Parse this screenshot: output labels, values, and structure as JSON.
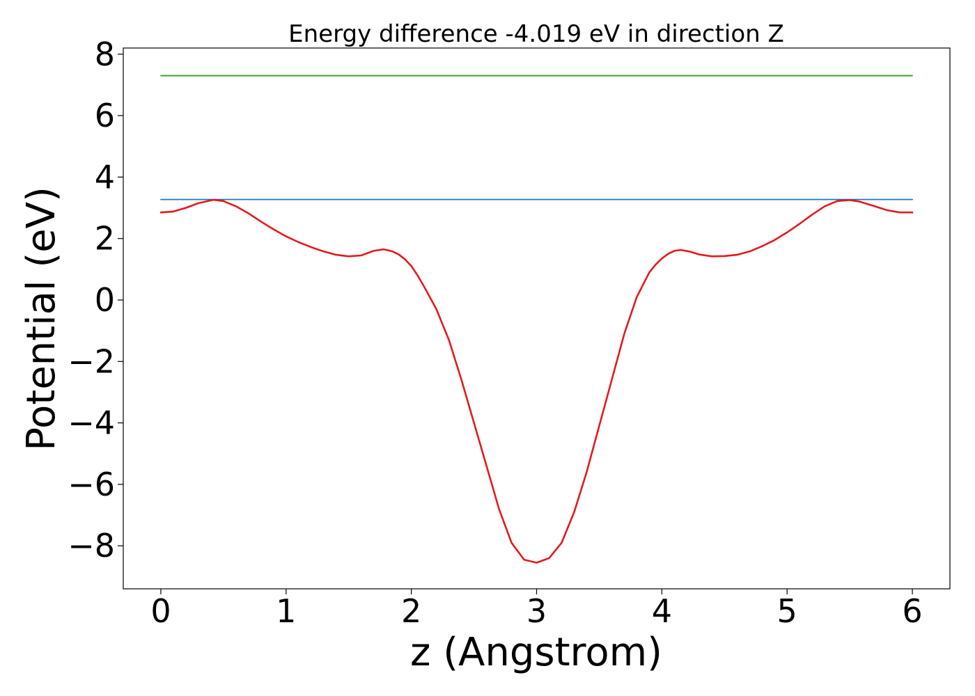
{
  "chart_data": {
    "type": "line",
    "title": "Energy difference -4.019 eV in direction Z",
    "xlabel": "z (Angstrom)",
    "ylabel": "Potential (eV)",
    "xlim": [
      -0.3,
      6.3
    ],
    "ylim": [
      -9.4,
      8.2
    ],
    "xticks": [
      0,
      1,
      2,
      3,
      4,
      5,
      6
    ],
    "xtick_labels": [
      "0",
      "1",
      "2",
      "3",
      "4",
      "5",
      "6"
    ],
    "yticks": [
      -8,
      -6,
      -4,
      -2,
      0,
      2,
      4,
      6,
      8
    ],
    "ytick_labels": [
      "−8",
      "−6",
      "−4",
      "−2",
      "0",
      "2",
      "4",
      "6",
      "8"
    ],
    "grid": false,
    "series": [
      {
        "color": "#2ca02c",
        "x": [
          0,
          6
        ],
        "y": [
          7.3,
          7.3
        ]
      },
      {
        "color": "#1f77b4",
        "x": [
          0,
          6
        ],
        "y": [
          3.27,
          3.27
        ]
      },
      {
        "color": "#e41a1c",
        "x": [
          0,
          0.1,
          0.2,
          0.3,
          0.42,
          0.5,
          0.6,
          0.7,
          0.8,
          0.9,
          1.0,
          1.1,
          1.2,
          1.3,
          1.4,
          1.5,
          1.6,
          1.7,
          1.78,
          1.85,
          1.9,
          1.95,
          2.0,
          2.05,
          2.1,
          2.2,
          2.3,
          2.4,
          2.5,
          2.6,
          2.7,
          2.8,
          2.9,
          3.0,
          3.1,
          3.2,
          3.3,
          3.4,
          3.5,
          3.6,
          3.7,
          3.8,
          3.9,
          3.95,
          4.0,
          4.05,
          4.1,
          4.15,
          4.22,
          4.3,
          4.4,
          4.5,
          4.6,
          4.7,
          4.8,
          4.9,
          5.0,
          5.1,
          5.2,
          5.3,
          5.4,
          5.5,
          5.58,
          5.7,
          5.8,
          5.9,
          6.0
        ],
        "y": [
          2.85,
          2.88,
          3.0,
          3.15,
          3.26,
          3.22,
          3.05,
          2.82,
          2.55,
          2.3,
          2.07,
          1.88,
          1.72,
          1.58,
          1.47,
          1.42,
          1.45,
          1.6,
          1.65,
          1.58,
          1.48,
          1.32,
          1.1,
          0.8,
          0.45,
          -0.3,
          -1.3,
          -2.6,
          -4.0,
          -5.4,
          -6.8,
          -7.9,
          -8.45,
          -8.55,
          -8.4,
          -7.9,
          -6.9,
          -5.6,
          -4.1,
          -2.6,
          -1.1,
          0.1,
          0.9,
          1.15,
          1.35,
          1.5,
          1.6,
          1.63,
          1.58,
          1.48,
          1.42,
          1.43,
          1.47,
          1.58,
          1.75,
          1.95,
          2.2,
          2.48,
          2.78,
          3.05,
          3.22,
          3.25,
          3.2,
          3.05,
          2.92,
          2.85,
          2.85
        ]
      }
    ]
  }
}
